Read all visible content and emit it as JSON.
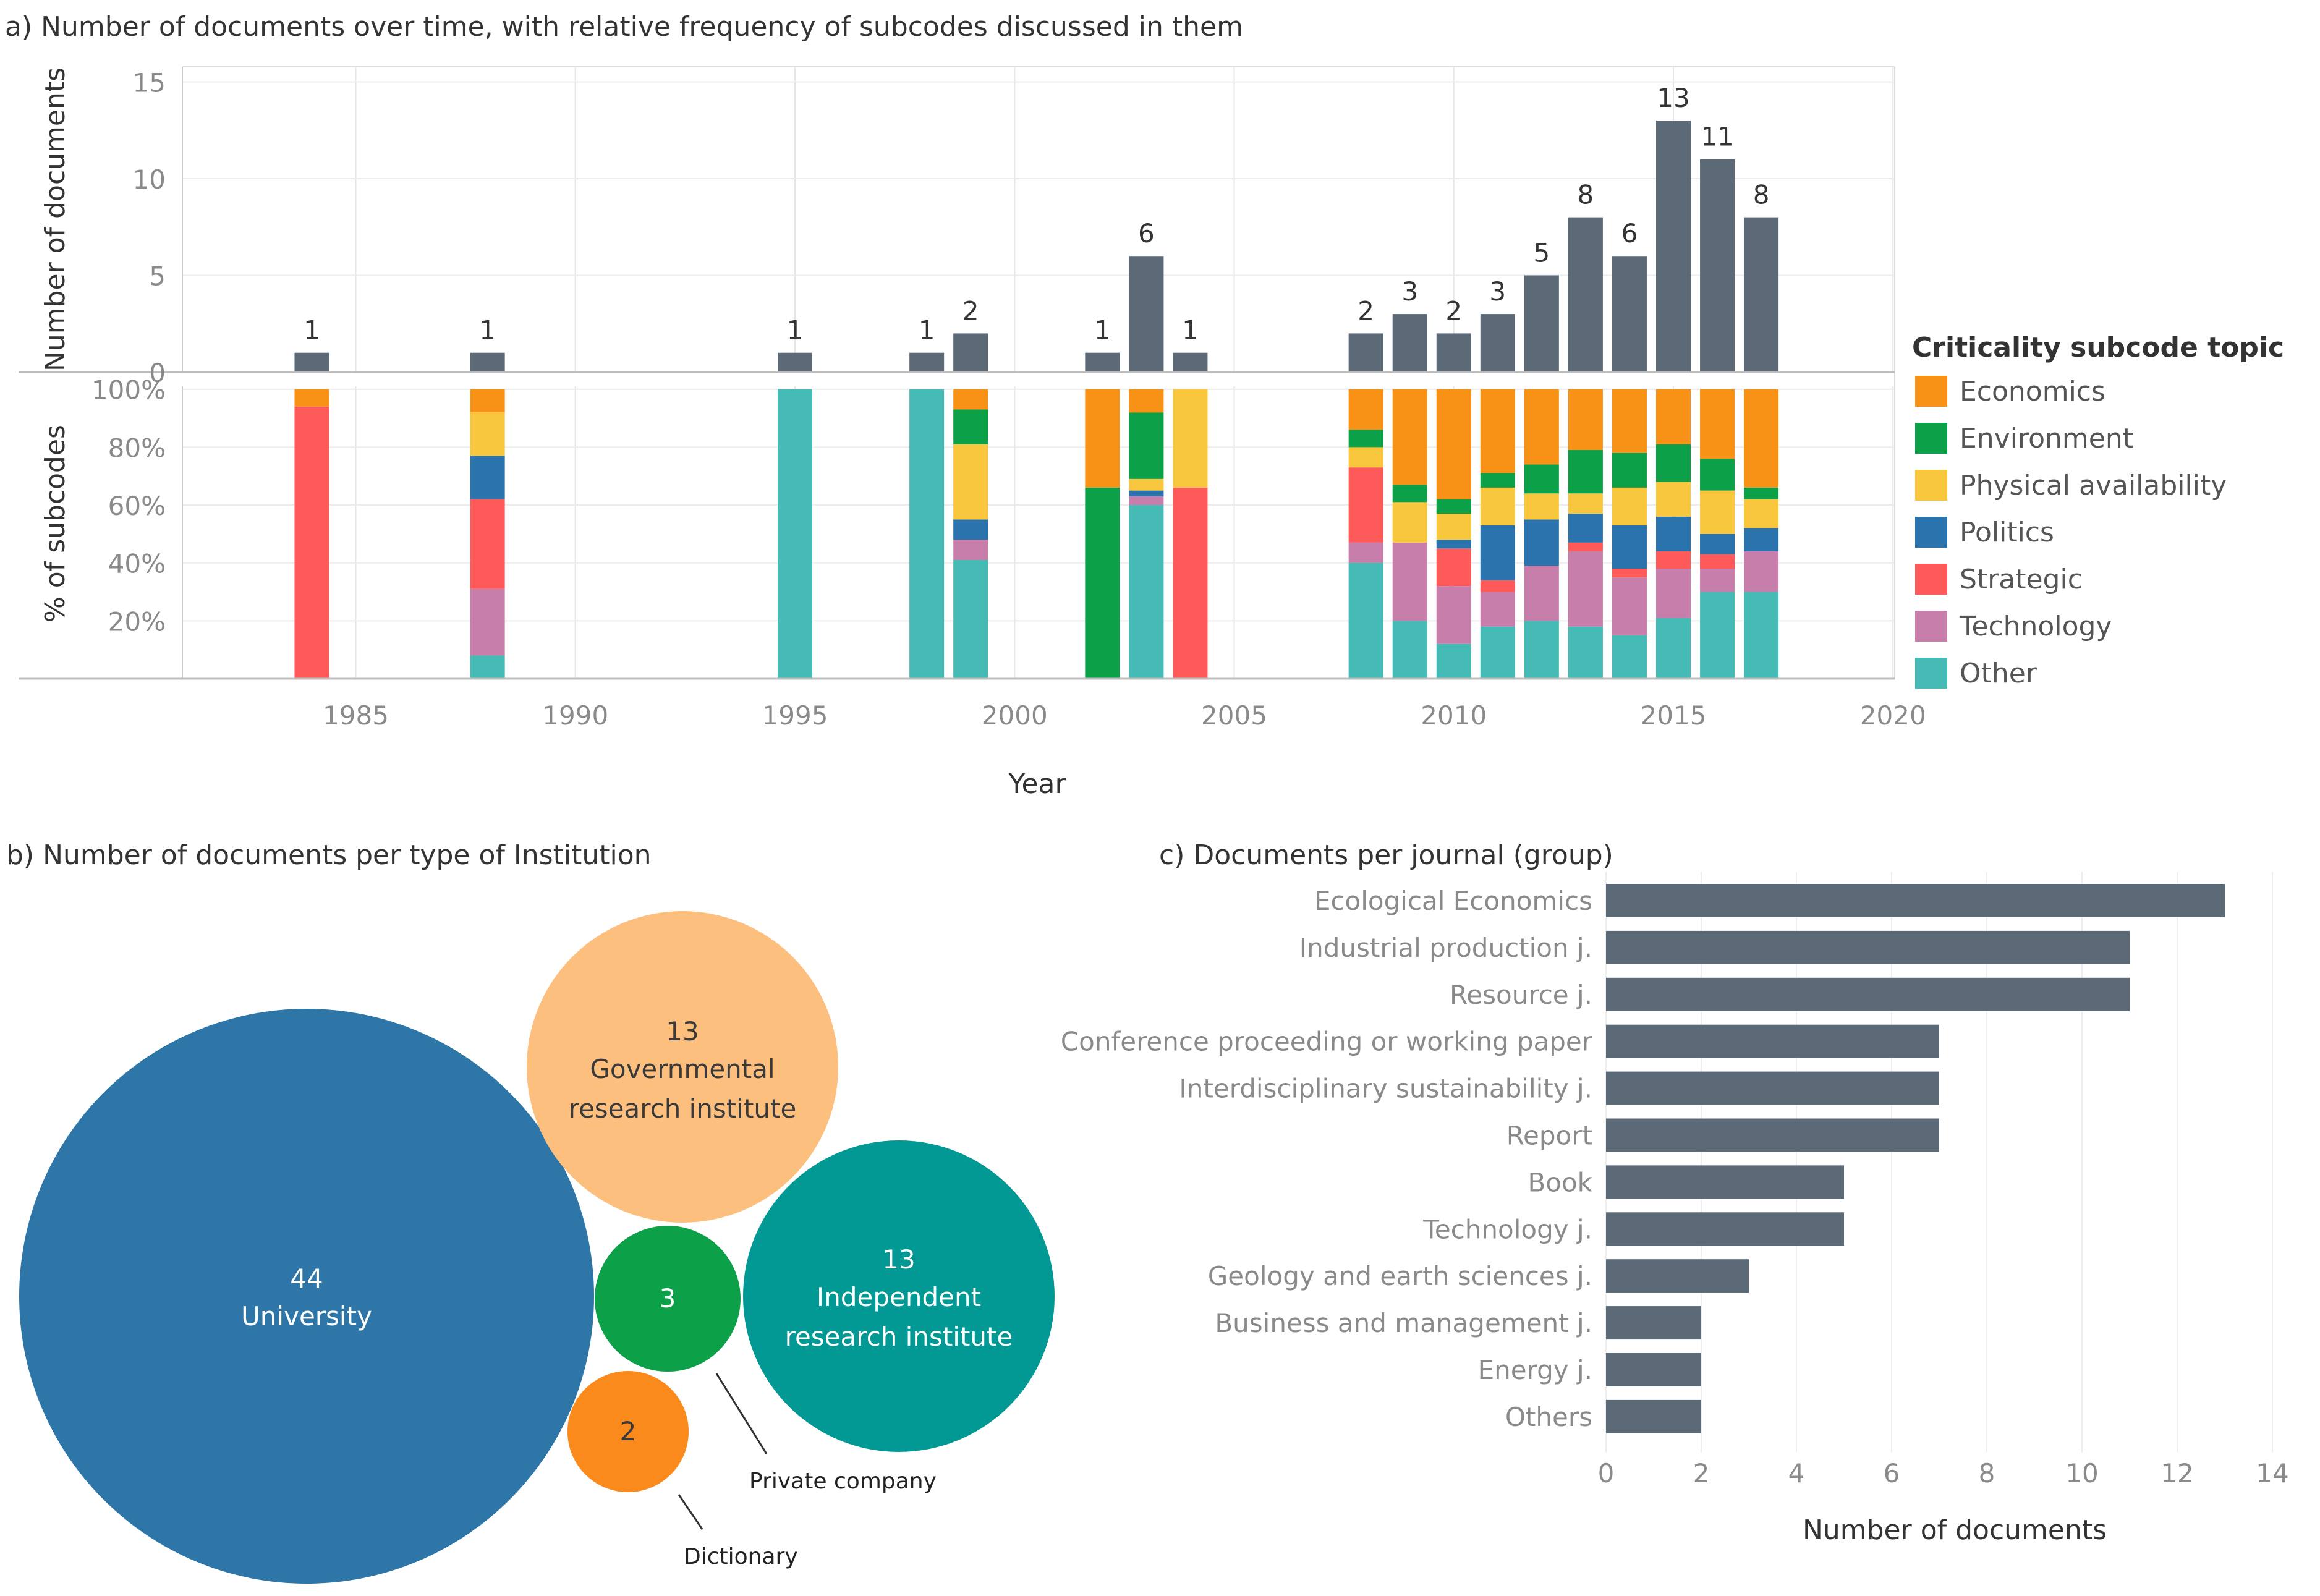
{
  "chart_data": [
    {
      "id": "a",
      "type": "bar",
      "title": "a) Number of documents over time, with relative frequency of subcodes discussed in them",
      "xlabel": "Year",
      "x_ticks": [
        "1985",
        "1990",
        "1995",
        "2000",
        "2005",
        "2010",
        "2015",
        "2020"
      ],
      "top_panel": {
        "ylabel": "Number of documents",
        "ylim": [
          0,
          16
        ],
        "y_ticks": [
          "0",
          "5",
          "10",
          "15"
        ],
        "years": [
          1984,
          1988,
          1995,
          1998,
          1999,
          2002,
          2003,
          2004,
          2008,
          2009,
          2010,
          2011,
          2012,
          2013,
          2014,
          2015,
          2016,
          2017
        ],
        "values": [
          1,
          1,
          1,
          1,
          2,
          1,
          6,
          1,
          2,
          3,
          2,
          3,
          5,
          8,
          6,
          13,
          11,
          8
        ],
        "labels": [
          "1",
          "1",
          "1",
          "1",
          "2",
          "1",
          "6",
          "1",
          "2",
          "3",
          "2",
          "3",
          "5",
          "8",
          "6",
          "13",
          "11",
          "8"
        ]
      },
      "bottom_panel": {
        "ylabel": "% of subcodes",
        "y_ticks": [
          "100%",
          "80%",
          "60%",
          "40%",
          "20%"
        ],
        "legend_title": "Criticality subcode topic",
        "series": [
          {
            "name": "Economics",
            "color": "#F89217",
            "values": [
              6,
              8,
              0,
              0,
              7,
              34,
              8,
              0,
              14,
              33,
              38,
              29,
              26,
              21,
              22,
              19,
              24,
              34
            ]
          },
          {
            "name": "Environment",
            "color": "#0CA048",
            "values": [
              0,
              0,
              0,
              0,
              12,
              66,
              23,
              0,
              6,
              6,
              5,
              5,
              10,
              15,
              12,
              13,
              11,
              4
            ]
          },
          {
            "name": "Physical availability",
            "color": "#F8C73D",
            "values": [
              0,
              15,
              0,
              0,
              26,
              0,
              4,
              34,
              7,
              14,
              9,
              13,
              9,
              7,
              13,
              12,
              15,
              10
            ]
          },
          {
            "name": "Politics",
            "color": "#2A73AC",
            "values": [
              0,
              15,
              0,
              0,
              7,
              0,
              2,
              0,
              0,
              0,
              3,
              19,
              16,
              10,
              15,
              12,
              7,
              8
            ]
          },
          {
            "name": "Strategic",
            "color": "#FE5A5A",
            "values": [
              94,
              31,
              0,
              0,
              0,
              0,
              0,
              66,
              26,
              0,
              13,
              4,
              0,
              3,
              3,
              6,
              5,
              0
            ]
          },
          {
            "name": "Technology",
            "color": "#C87EAB",
            "values": [
              0,
              23,
              0,
              0,
              7,
              0,
              3,
              0,
              7,
              27,
              20,
              12,
              19,
              26,
              20,
              17,
              8,
              14
            ]
          },
          {
            "name": "Other",
            "color": "#46BAB4",
            "values": [
              0,
              8,
              100,
              100,
              41,
              0,
              60,
              0,
              40,
              20,
              12,
              18,
              20,
              18,
              15,
              21,
              30,
              30
            ]
          }
        ]
      }
    },
    {
      "id": "b",
      "type": "bubble",
      "title": "b) Number of documents per type of Institution",
      "bubbles": [
        {
          "value": "44",
          "label": "University",
          "color": "#2E76A8"
        },
        {
          "value": "13",
          "label": "Governmental research institute",
          "color": "#FDBF7E"
        },
        {
          "value": "13",
          "label": "Independent research institute",
          "color": "#029893"
        },
        {
          "value": "3",
          "label": "Private company",
          "color": "#0CA048"
        },
        {
          "value": "2",
          "label": "Dictionary",
          "color": "#F98A1B"
        }
      ]
    },
    {
      "id": "c",
      "type": "bar",
      "orientation": "horizontal",
      "title": "c) Documents per journal (group)",
      "xlabel": "Number of documents",
      "xlim": [
        0,
        14
      ],
      "x_ticks": [
        "0",
        "2",
        "4",
        "6",
        "8",
        "10",
        "12",
        "14"
      ],
      "bar_color": "#5C6A78",
      "categories": [
        "Ecological Economics",
        "Industrial production j.",
        "Resource j.",
        "Conference proceeding or working paper",
        "Interdisciplinary sustainability j.",
        "Report",
        "Book",
        "Technology j.",
        "Geology and earth sciences j.",
        "Business and management j.",
        "Energy j.",
        "Others"
      ],
      "values": [
        13,
        11,
        11,
        7,
        7,
        7,
        5,
        5,
        3,
        2,
        2,
        2
      ]
    }
  ]
}
